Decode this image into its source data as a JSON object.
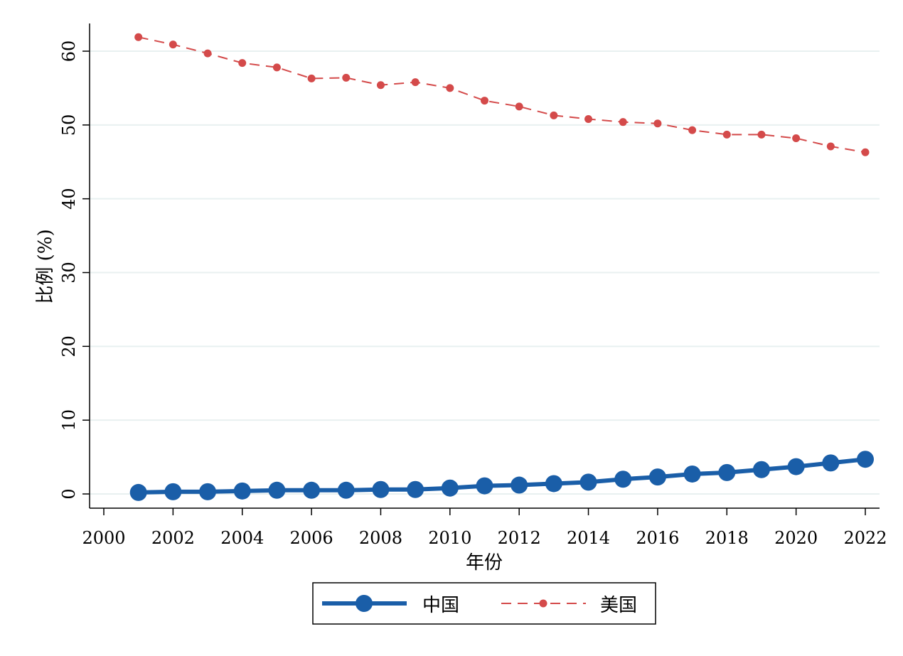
{
  "chart_data": {
    "type": "line",
    "xlabel": "年份",
    "ylabel": "比例 (%)",
    "xlim": [
      2000,
      2022
    ],
    "ylim": [
      0,
      60
    ],
    "xticks": [
      2000,
      2002,
      2004,
      2006,
      2008,
      2010,
      2012,
      2014,
      2016,
      2018,
      2020,
      2022
    ],
    "yticks": [
      0,
      10,
      20,
      30,
      40,
      50,
      60
    ],
    "grid": true,
    "legend": "bottom",
    "x": [
      2001,
      2002,
      2003,
      2004,
      2005,
      2006,
      2007,
      2008,
      2009,
      2010,
      2011,
      2012,
      2013,
      2014,
      2015,
      2016,
      2017,
      2018,
      2019,
      2020,
      2021,
      2022
    ],
    "series": [
      {
        "name": "中国",
        "color": "#1a5ea8",
        "style": "solid-large-markers",
        "values": [
          0.2,
          0.3,
          0.3,
          0.4,
          0.5,
          0.5,
          0.5,
          0.6,
          0.6,
          0.8,
          1.1,
          1.2,
          1.4,
          1.6,
          2.0,
          2.3,
          2.7,
          2.9,
          3.3,
          3.7,
          4.2,
          4.7
        ]
      },
      {
        "name": "美国",
        "color": "#d44a4a",
        "style": "dashed-small-markers",
        "values": [
          61.9,
          60.9,
          59.7,
          58.4,
          57.8,
          56.3,
          56.4,
          55.4,
          55.8,
          55.0,
          53.3,
          52.5,
          51.3,
          50.8,
          50.4,
          50.2,
          49.3,
          48.7,
          48.7,
          48.2,
          47.1,
          46.3
        ]
      }
    ]
  }
}
